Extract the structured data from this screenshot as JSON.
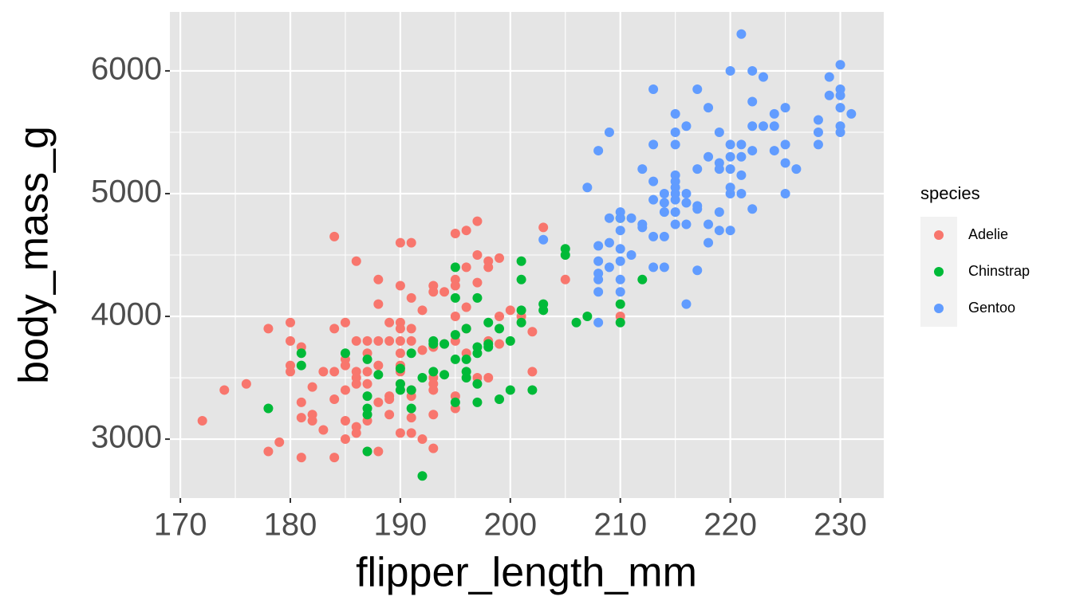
{
  "chart_data": {
    "type": "scatter",
    "x_label": "flipper_length_mm",
    "y_label": "body_mass_g",
    "xlim": [
      169.05,
      233.95
    ],
    "ylim": [
      2520,
      6480
    ],
    "xticks": [
      170,
      180,
      190,
      200,
      210,
      220,
      230
    ],
    "yticks": [
      3000,
      4000,
      5000,
      6000
    ],
    "minor_xticks": [
      175,
      185,
      195,
      205,
      215,
      225
    ],
    "minor_yticks": [
      3500,
      4500,
      5500
    ],
    "grid": true,
    "background": "#e5e5e5",
    "legend_title": "species",
    "legend_position": "right",
    "series": [
      {
        "name": "Adelie",
        "color": "#f8766d",
        "x": [
          172,
          174,
          176,
          178,
          178,
          179,
          180,
          180,
          180,
          180,
          181,
          181,
          181,
          181,
          182,
          182,
          182,
          183,
          183,
          184,
          184,
          184,
          184,
          184,
          185,
          185,
          185,
          185,
          185,
          185,
          186,
          186,
          186,
          186,
          186,
          186,
          186,
          187,
          187,
          187,
          187,
          187,
          187,
          188,
          188,
          188,
          188,
          188,
          188,
          189,
          189,
          189,
          189,
          189,
          190,
          190,
          190,
          190,
          190,
          190,
          190,
          190,
          190,
          190,
          191,
          191,
          191,
          191,
          191,
          191,
          191,
          191,
          192,
          192,
          192,
          193,
          193,
          193,
          193,
          193,
          193,
          193,
          193,
          194,
          194,
          195,
          195,
          195,
          195,
          195,
          195,
          195,
          196,
          196,
          196,
          196,
          196,
          197,
          197,
          197,
          197,
          198,
          198,
          198,
          198,
          199,
          199,
          199,
          200,
          201,
          202,
          202,
          203,
          205,
          210
        ],
        "values": [
          3150,
          3400,
          3450,
          3900,
          2900,
          2975,
          3950,
          3800,
          3600,
          3550,
          3750,
          3300,
          3175,
          2850,
          3200,
          3150,
          3425,
          3550,
          3075,
          4650,
          3900,
          3550,
          3325,
          2850,
          3950,
          3650,
          3600,
          3400,
          3150,
          3000,
          4450,
          3800,
          3550,
          3500,
          3450,
          3100,
          3050,
          3800,
          3700,
          3550,
          3450,
          3150,
          2900,
          4300,
          4100,
          3800,
          3600,
          3300,
          2900,
          3950,
          3800,
          3350,
          3325,
          3200,
          4600,
          4250,
          3950,
          3900,
          3800,
          3700,
          3600,
          3550,
          3450,
          3050,
          4600,
          4150,
          3900,
          3800,
          3400,
          3350,
          3050,
          3175,
          4050,
          3725,
          3000,
          4250,
          4200,
          3750,
          3500,
          3450,
          3400,
          3200,
          2925,
          4200,
          3775,
          4675,
          4300,
          4250,
          4000,
          3800,
          3350,
          3250,
          4700,
          4400,
          4075,
          3900,
          3700,
          4775,
          4500,
          4275,
          3500,
          4450,
          4400,
          3800,
          3500,
          4475,
          4000,
          3775,
          4050,
          4000,
          3875,
          3550,
          4725,
          4300,
          4000
        ]
      },
      {
        "name": "Chinstrap",
        "color": "#00ba38",
        "x": [
          178,
          181,
          181,
          185,
          187,
          187,
          187,
          187,
          187,
          188,
          190,
          190,
          190,
          191,
          191,
          191,
          192,
          192,
          193,
          193,
          193,
          194,
          194,
          195,
          195,
          195,
          195,
          195,
          196,
          196,
          196,
          196,
          197,
          197,
          197,
          197,
          197,
          198,
          198,
          198,
          199,
          199,
          200,
          200,
          201,
          201,
          201,
          201,
          202,
          203,
          203,
          205,
          205,
          206,
          207,
          210,
          210,
          210,
          212
        ],
        "values": [
          3250,
          3700,
          3600,
          3700,
          3650,
          3350,
          3250,
          3200,
          2900,
          3525,
          3575,
          3450,
          3400,
          3700,
          3400,
          3250,
          3500,
          2700,
          3800,
          3775,
          3550,
          3525,
          3775,
          4400,
          4150,
          3850,
          3650,
          3300,
          3900,
          3650,
          3550,
          3500,
          4150,
          3750,
          3700,
          3450,
          3300,
          3950,
          3775,
          3750,
          3900,
          3325,
          3800,
          3400,
          4450,
          4300,
          4050,
          3950,
          3400,
          4100,
          4050,
          4550,
          4500,
          3950,
          4000,
          4800,
          4100,
          3950,
          4300
        ]
      },
      {
        "name": "Gentoo",
        "color": "#619cff",
        "x": [
          203,
          207,
          208,
          208,
          208,
          208,
          208,
          208,
          208,
          209,
          209,
          209,
          209,
          210,
          210,
          210,
          210,
          210,
          210,
          210,
          211,
          211,
          212,
          212,
          212,
          213,
          213,
          213,
          213,
          213,
          213,
          214,
          214,
          214,
          214,
          214,
          215,
          215,
          215,
          215,
          215,
          215,
          215,
          215,
          215,
          215,
          216,
          216,
          216,
          216,
          216,
          217,
          217,
          217,
          217,
          217,
          218,
          218,
          218,
          218,
          219,
          219,
          219,
          219,
          219,
          220,
          220,
          220,
          220,
          220,
          220,
          220,
          221,
          221,
          221,
          221,
          221,
          222,
          222,
          222,
          222,
          222,
          223,
          223,
          224,
          224,
          224,
          225,
          225,
          225,
          225,
          226,
          228,
          228,
          228,
          229,
          229,
          230,
          230,
          230,
          230,
          230,
          230,
          231
        ],
        "values": [
          4625,
          5050,
          5350,
          4575,
          4450,
          4350,
          4300,
          4200,
          3950,
          5500,
          4800,
          4600,
          4400,
          4850,
          4800,
          4700,
          4550,
          4450,
          4300,
          4200,
          4800,
          4500,
          5200,
          4750,
          4725,
          5850,
          5400,
          5100,
          4950,
          4650,
          4400,
          5000,
          4925,
          4850,
          4650,
          4400,
          5650,
          5500,
          5400,
          5150,
          5100,
          5050,
          5000,
          4950,
          4850,
          4750,
          5550,
          5000,
          4925,
          4750,
          4100,
          5850,
          5200,
          4900,
          4875,
          4375,
          5700,
          5300,
          4750,
          4600,
          5500,
          5250,
          5200,
          4850,
          4700,
          6000,
          5400,
          5300,
          5200,
          5050,
          5000,
          4700,
          6300,
          5400,
          5300,
          5150,
          5000,
          6000,
          5750,
          5550,
          5350,
          4875,
          5950,
          5550,
          5650,
          5550,
          5350,
          5700,
          5400,
          5250,
          5000,
          5200,
          5600,
          5500,
          5400,
          5950,
          5800,
          6050,
          5850,
          5800,
          5700,
          5550,
          5500,
          5650
        ]
      }
    ]
  }
}
